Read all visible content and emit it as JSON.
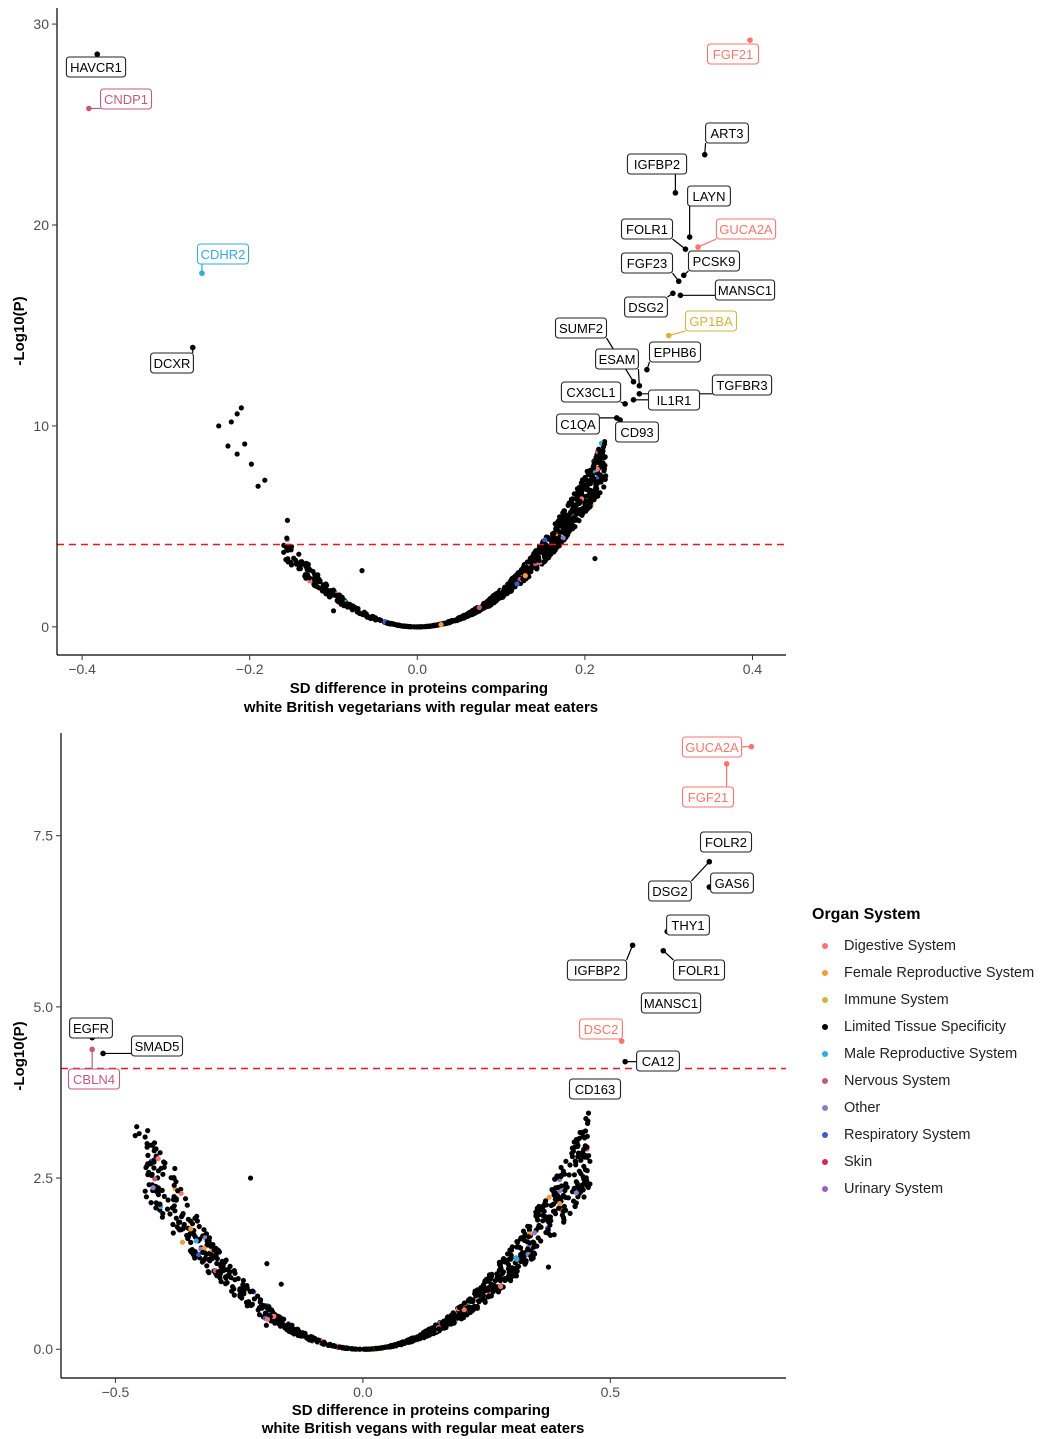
{
  "legend": {
    "title": "Organ System",
    "items": [
      {
        "label": "Digestive System",
        "color": "#F8766D"
      },
      {
        "label": "Female Reproductive System",
        "color": "#F39B3B"
      },
      {
        "label": "Immune System",
        "color": "#D3B43E"
      },
      {
        "label": "Limited Tissue Specificity",
        "color": "#000000"
      },
      {
        "label": "Male Reproductive System",
        "color": "#35A9E0"
      },
      {
        "label": "Nervous System",
        "color": "#C25B7E"
      },
      {
        "label": "Other",
        "color": "#8C7FC9"
      },
      {
        "label": "Respiratory System",
        "color": "#3B5DC9"
      },
      {
        "label": "Skin",
        "color": "#D62754"
      },
      {
        "label": "Urinary System",
        "color": "#A259C9"
      }
    ]
  },
  "chart_data": [
    {
      "type": "scatter",
      "xlabel": "SD difference in proteins comparing\nwhite British vegetarians with regular meat eaters",
      "ylabel": "-Log10(P)",
      "xlim": [
        -0.43,
        0.44
      ],
      "ylim": [
        -1.4,
        30.8
      ],
      "xticks": [
        -0.4,
        -0.2,
        0.0,
        0.2,
        0.4
      ],
      "xtick_labels": [
        "−0.4",
        "−0.2",
        "0.0",
        "0.2",
        "0.4"
      ],
      "yticks": [
        0,
        10,
        20,
        30
      ],
      "ytick_labels": [
        "0",
        "10",
        "20",
        "30"
      ],
      "threshold": 4.1,
      "labeled": [
        {
          "name": "HAVCR1",
          "x": -0.382,
          "y": 28.5,
          "group": "Limited Tissue Specificity"
        },
        {
          "name": "CNDP1",
          "x": -0.392,
          "y": 25.8,
          "group": "Nervous System"
        },
        {
          "name": "FGF21",
          "x": 0.397,
          "y": 29.2,
          "group": "Digestive System"
        },
        {
          "name": "ART3",
          "x": 0.343,
          "y": 23.5,
          "group": "Limited Tissue Specificity"
        },
        {
          "name": "IGFBP2",
          "x": 0.308,
          "y": 21.6,
          "group": "Limited Tissue Specificity"
        },
        {
          "name": "LAYN",
          "x": 0.325,
          "y": 19.4,
          "group": "Limited Tissue Specificity"
        },
        {
          "name": "FOLR1",
          "x": 0.32,
          "y": 18.8,
          "group": "Limited Tissue Specificity"
        },
        {
          "name": "GUCA2A",
          "x": 0.335,
          "y": 18.9,
          "group": "Digestive System"
        },
        {
          "name": "CDHR2",
          "x": -0.257,
          "y": 17.6,
          "group": "Male Reproductive System"
        },
        {
          "name": "FGF23",
          "x": 0.312,
          "y": 17.2,
          "group": "Limited Tissue Specificity"
        },
        {
          "name": "PCSK9",
          "x": 0.318,
          "y": 17.5,
          "group": "Limited Tissue Specificity"
        },
        {
          "name": "MANSC1",
          "x": 0.314,
          "y": 16.5,
          "group": "Limited Tissue Specificity"
        },
        {
          "name": "DSG2",
          "x": 0.305,
          "y": 16.6,
          "group": "Limited Tissue Specificity"
        },
        {
          "name": "GP1BA",
          "x": 0.3,
          "y": 14.5,
          "group": "Immune System"
        },
        {
          "name": "SUMF2",
          "x": 0.258,
          "y": 12.2,
          "group": "Limited Tissue Specificity"
        },
        {
          "name": "EPHB6",
          "x": 0.274,
          "y": 12.8,
          "group": "Limited Tissue Specificity"
        },
        {
          "name": "DCXR",
          "x": -0.268,
          "y": 13.9,
          "group": "Limited Tissue Specificity"
        },
        {
          "name": "ESAM",
          "x": 0.265,
          "y": 12.0,
          "group": "Limited Tissue Specificity"
        },
        {
          "name": "TGFBR3",
          "x": 0.265,
          "y": 11.6,
          "group": "Limited Tissue Specificity"
        },
        {
          "name": "CX3CL1",
          "x": 0.248,
          "y": 11.1,
          "group": "Limited Tissue Specificity"
        },
        {
          "name": "IL1R1",
          "x": 0.258,
          "y": 11.3,
          "group": "Limited Tissue Specificity"
        },
        {
          "name": "C1QA",
          "x": 0.238,
          "y": 10.4,
          "group": "Limited Tissue Specificity"
        },
        {
          "name": "CD93",
          "x": 0.242,
          "y": 10.3,
          "group": "Limited Tissue Specificity"
        }
      ],
      "scattered": [
        {
          "x": -0.21,
          "y": 10.9
        },
        {
          "x": -0.215,
          "y": 10.6
        },
        {
          "x": -0.222,
          "y": 10.2
        },
        {
          "x": -0.237,
          "y": 10.0
        },
        {
          "x": -0.226,
          "y": 9.0
        },
        {
          "x": -0.206,
          "y": 9.1
        },
        {
          "x": -0.215,
          "y": 8.6
        },
        {
          "x": -0.198,
          "y": 8.1
        },
        {
          "x": -0.182,
          "y": 7.3
        },
        {
          "x": -0.19,
          "y": 7.0
        },
        {
          "x": -0.155,
          "y": 5.3
        },
        {
          "x": -0.1,
          "y": 0.8
        },
        {
          "x": 0.212,
          "y": 3.4
        },
        {
          "x": -0.066,
          "y": 2.8
        }
      ]
    },
    {
      "type": "scatter",
      "xlabel": "SD difference in proteins comparing\nwhite British vegans with regular meat eaters",
      "ylabel": "-Log10(P)",
      "xlim": [
        -0.61,
        0.855
      ],
      "ylim": [
        -0.42,
        9.0
      ],
      "xticks": [
        -0.5,
        0.0,
        0.5
      ],
      "xtick_labels": [
        "−0.5",
        "0.0",
        "0.5"
      ],
      "yticks": [
        0.0,
        2.5,
        5.0,
        7.5
      ],
      "ytick_labels": [
        "0.0",
        "2.5",
        "5.0",
        "7.5"
      ],
      "threshold": 4.1,
      "labeled": [
        {
          "name": "GUCA2A",
          "x": 0.785,
          "y": 8.8,
          "group": "Digestive System"
        },
        {
          "name": "FGF21",
          "x": 0.735,
          "y": 8.55,
          "group": "Digestive System"
        },
        {
          "name": "FOLR2",
          "x": 0.713,
          "y": 7.35,
          "group": "Limited Tissue Specificity"
        },
        {
          "name": "DSG2",
          "x": 0.7,
          "y": 7.12,
          "group": "Limited Tissue Specificity"
        },
        {
          "name": "GAS6",
          "x": 0.7,
          "y": 6.75,
          "group": "Limited Tissue Specificity"
        },
        {
          "name": "THY1",
          "x": 0.615,
          "y": 6.1,
          "group": "Limited Tissue Specificity"
        },
        {
          "name": "IGFBP2",
          "x": 0.545,
          "y": 5.9,
          "group": "Limited Tissue Specificity"
        },
        {
          "name": "FOLR1",
          "x": 0.607,
          "y": 5.82,
          "group": "Limited Tissue Specificity"
        },
        {
          "name": "MANSC1",
          "x": 0.578,
          "y": 4.95,
          "group": "Limited Tissue Specificity"
        },
        {
          "name": "EGFR",
          "x": -0.547,
          "y": 4.55,
          "group": "Limited Tissue Specificity"
        },
        {
          "name": "SMAD5",
          "x": -0.525,
          "y": 4.32,
          "group": "Limited Tissue Specificity"
        },
        {
          "name": "CBLN4",
          "x": -0.547,
          "y": 4.38,
          "group": "Nervous System"
        },
        {
          "name": "DSC2",
          "x": 0.523,
          "y": 4.5,
          "group": "Digestive System"
        },
        {
          "name": "CA12",
          "x": 0.53,
          "y": 4.2,
          "group": "Limited Tissue Specificity"
        },
        {
          "name": "CD163",
          "x": 0.503,
          "y": 3.9,
          "group": "Limited Tissue Specificity"
        }
      ],
      "scattered": [
        {
          "x": -0.457,
          "y": 3.25
        },
        {
          "x": -0.452,
          "y": 3.15
        },
        {
          "x": -0.46,
          "y": 3.12
        },
        {
          "x": -0.44,
          "y": 3.1
        },
        {
          "x": -0.425,
          "y": 2.98
        },
        {
          "x": -0.43,
          "y": 2.72
        },
        {
          "x": -0.4,
          "y": 2.72
        },
        {
          "x": -0.38,
          "y": 2.64
        },
        {
          "x": -0.227,
          "y": 2.5
        },
        {
          "x": -0.165,
          "y": 0.95
        },
        {
          "x": -0.194,
          "y": 1.25
        },
        {
          "x": -0.195,
          "y": 0.35
        },
        {
          "x": 0.375,
          "y": 1.2
        }
      ]
    }
  ]
}
